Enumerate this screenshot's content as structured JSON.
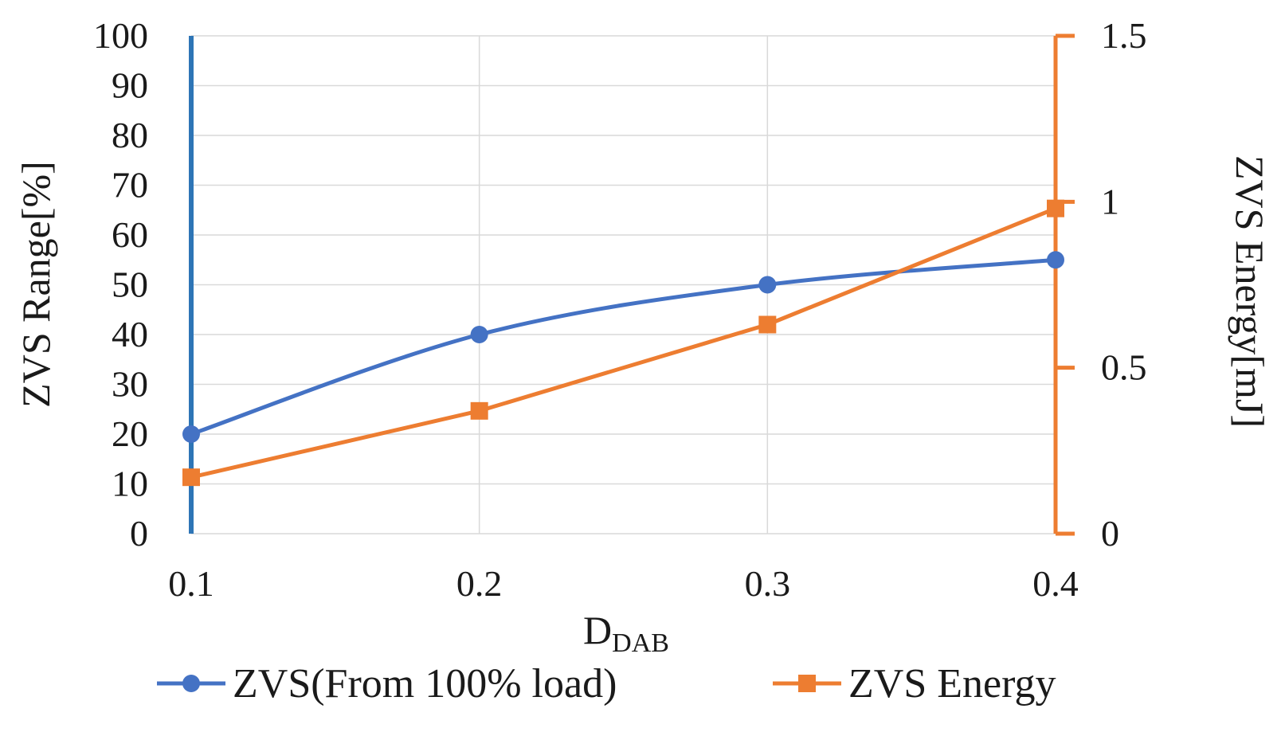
{
  "chart_data": {
    "type": "line",
    "title": "",
    "x": [
      0.1,
      0.2,
      0.3,
      0.4
    ],
    "x_tick_labels": [
      "0.1",
      "0.2",
      "0.3",
      "0.4"
    ],
    "xlabel_main": "D",
    "xlabel_sub": "DAB",
    "ylabel_left": "ZVS Range[%]",
    "ylabel_right": "ZVS Energy[mJ]",
    "ylim_left": [
      0,
      100
    ],
    "ylim_right": [
      0,
      1.5
    ],
    "y_left_ticks": [
      0,
      10,
      20,
      30,
      40,
      50,
      60,
      70,
      80,
      90,
      100
    ],
    "y_left_tick_labels": [
      "0",
      "10",
      "20",
      "30",
      "40",
      "50",
      "60",
      "70",
      "80",
      "90",
      "100"
    ],
    "y_right_ticks": [
      0,
      0.5,
      1,
      1.5
    ],
    "y_right_tick_labels": [
      "0",
      "0.5",
      "1",
      "1.5"
    ],
    "grid": true,
    "legend_position": "bottom",
    "series": [
      {
        "name": "ZVS(From 100% load)",
        "axis": "left",
        "marker": "circle",
        "smooth": true,
        "color": "#4472c4",
        "values": [
          20,
          40,
          50,
          55
        ]
      },
      {
        "name": "ZVS Energy",
        "axis": "right",
        "marker": "square",
        "smooth": false,
        "color": "#ed7d31",
        "values": [
          0.17,
          0.37,
          0.63,
          0.98
        ]
      }
    ],
    "left_axis_color": "#2e75b6",
    "right_axis_color": "#ed7d31"
  }
}
